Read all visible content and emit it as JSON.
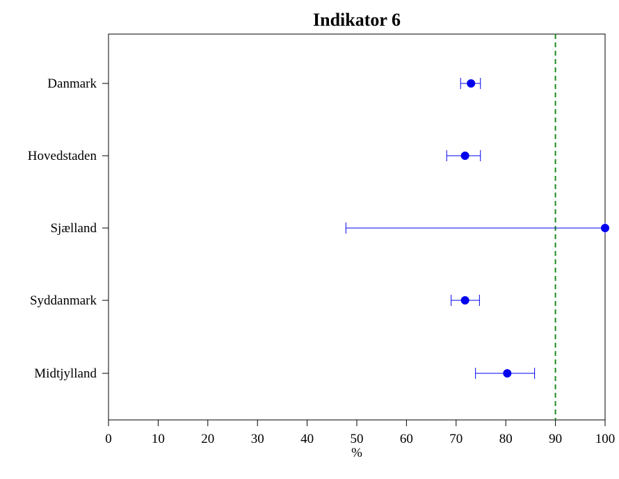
{
  "chart_data": {
    "type": "scatter",
    "title": "Indikator 6",
    "xlabel": "%",
    "ylabel": "",
    "xlim": [
      0,
      100
    ],
    "xticks": [
      "0",
      "10",
      "20",
      "30",
      "40",
      "50",
      "60",
      "70",
      "80",
      "90",
      "100"
    ],
    "reference_line": {
      "x": 90,
      "color": "#1a8a1a",
      "style": "dashed"
    },
    "grid": false,
    "point_color": "#0000ee",
    "categories": [
      "Danmark",
      "Hovedstaden",
      "Sjælland",
      "Syddanmark",
      "Midtjylland"
    ],
    "values": [
      73,
      71.8,
      100,
      71.8,
      80.3
    ],
    "ci_low": [
      70.9,
      68.1,
      47.8,
      69.0,
      73.9
    ],
    "ci_high": [
      74.9,
      74.9,
      100,
      74.7,
      85.8
    ]
  }
}
